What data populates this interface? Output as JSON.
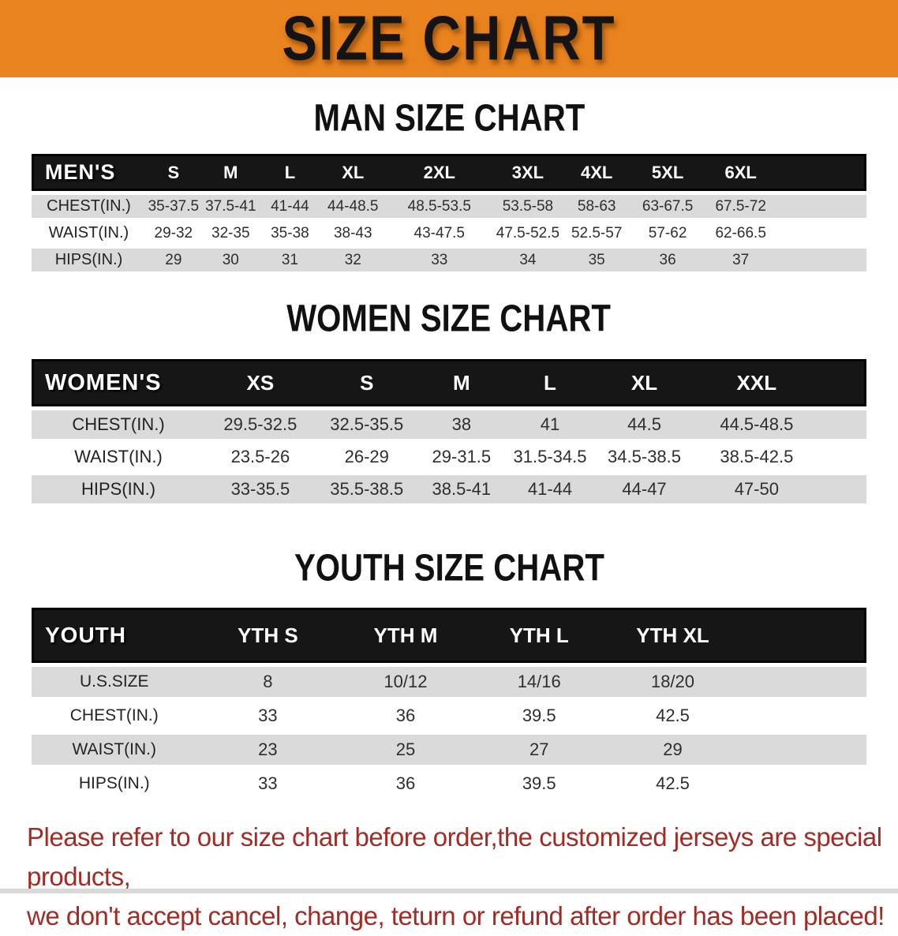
{
  "banner": {
    "title": "SIZE CHART"
  },
  "colors": {
    "banner_bg": "#E8831E",
    "table_header_bg": "#161616",
    "row_stripe_gray": "#DADADA",
    "disclaimer_red": "#A32B24",
    "heading_black": "#111111"
  },
  "men_section": {
    "heading": "MAN SIZE CHART",
    "table": {
      "corner_label": "MEN'S",
      "columns": [
        "S",
        "M",
        "L",
        "XL",
        "2XL",
        "3XL",
        "4XL",
        "5XL",
        "6XL"
      ],
      "rows": [
        {
          "label": "CHEST(IN.)",
          "values": [
            "35-37.5",
            "37.5-41",
            "41-44",
            "44-48.5",
            "48.5-53.5",
            "53.5-58",
            "58-63",
            "63-67.5",
            "67.5-72"
          ]
        },
        {
          "label": "WAIST(IN.)",
          "values": [
            "29-32",
            "32-35",
            "35-38",
            "38-43",
            "43-47.5",
            "47.5-52.5",
            "52.5-57",
            "57-62",
            "62-66.5"
          ]
        },
        {
          "label": "HIPS(IN.)",
          "values": [
            "29",
            "30",
            "31",
            "32",
            "33",
            "34",
            "35",
            "36",
            "37"
          ]
        }
      ]
    }
  },
  "women_section": {
    "heading": "WOMEN SIZE CHART",
    "table": {
      "corner_label": "WOMEN'S",
      "columns": [
        "XS",
        "S",
        "M",
        "L",
        "XL",
        "XXL"
      ],
      "rows": [
        {
          "label": "CHEST(IN.)",
          "values": [
            "29.5-32.5",
            "32.5-35.5",
            "38",
            "41",
            "44.5",
            "44.5-48.5"
          ]
        },
        {
          "label": "WAIST(IN.)",
          "values": [
            "23.5-26",
            "26-29",
            "29-31.5",
            "31.5-34.5",
            "34.5-38.5",
            "38.5-42.5"
          ]
        },
        {
          "label": "HIPS(IN.)",
          "values": [
            "33-35.5",
            "35.5-38.5",
            "38.5-41",
            "41-44",
            "44-47",
            "47-50"
          ]
        }
      ]
    }
  },
  "youth_section": {
    "heading": "YOUTH SIZE CHART",
    "table": {
      "corner_label": "YOUTH",
      "columns": [
        "YTH S",
        "YTH M",
        "YTH L",
        "YTH XL"
      ],
      "rows": [
        {
          "label": "U.S.SIZE",
          "values": [
            "8",
            "10/12",
            "14/16",
            "18/20"
          ]
        },
        {
          "label": "CHEST(IN.)",
          "values": [
            "33",
            "36",
            "39.5",
            "42.5"
          ]
        },
        {
          "label": "WAIST(IN.)",
          "values": [
            "23",
            "25",
            "27",
            "29"
          ]
        },
        {
          "label": "HIPS(IN.)",
          "values": [
            "33",
            "36",
            "39.5",
            "42.5"
          ]
        }
      ]
    }
  },
  "disclaimer": {
    "lines": [
      "Please refer to our size chart before order,the customized jerseys are special products,",
      "we don't accept cancel, change, teturn or refund after order has been placed!"
    ]
  }
}
